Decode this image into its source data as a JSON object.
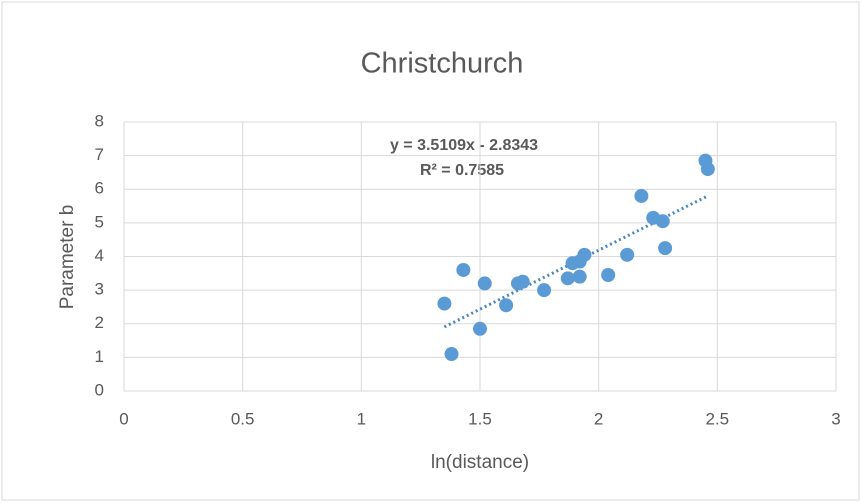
{
  "chart_data": {
    "type": "scatter",
    "title": "Christchurch",
    "xlabel": "ln(distance)",
    "ylabel": "Parameter b",
    "x": [
      1.35,
      1.38,
      1.43,
      1.5,
      1.52,
      1.61,
      1.66,
      1.68,
      1.77,
      1.87,
      1.89,
      1.92,
      1.92,
      1.94,
      2.04,
      2.12,
      2.18,
      2.23,
      2.27,
      2.28,
      2.45,
      2.46
    ],
    "series": [
      {
        "name": "Parameter b",
        "color": "#5b9bd5",
        "values": [
          2.6,
          1.1,
          3.6,
          1.85,
          3.2,
          2.55,
          3.2,
          3.25,
          3.0,
          3.35,
          3.8,
          3.85,
          3.4,
          4.05,
          3.45,
          4.05,
          5.8,
          5.15,
          5.05,
          4.25,
          6.85,
          6.6
        ]
      }
    ],
    "trendline": {
      "slope": 3.5109,
      "intercept": -2.8343,
      "color": "#4a86c0",
      "equation": "y = 3.5109x - 2.8343",
      "r2_label": "R² = 0.7585"
    },
    "xlim": [
      0,
      3
    ],
    "xticks": [
      0,
      0.5,
      1,
      1.5,
      2,
      2.5,
      3
    ],
    "ylim": [
      0,
      8
    ],
    "yticks": [
      0,
      1,
      2,
      3,
      4,
      5,
      6,
      7,
      8
    ],
    "grid": true
  }
}
